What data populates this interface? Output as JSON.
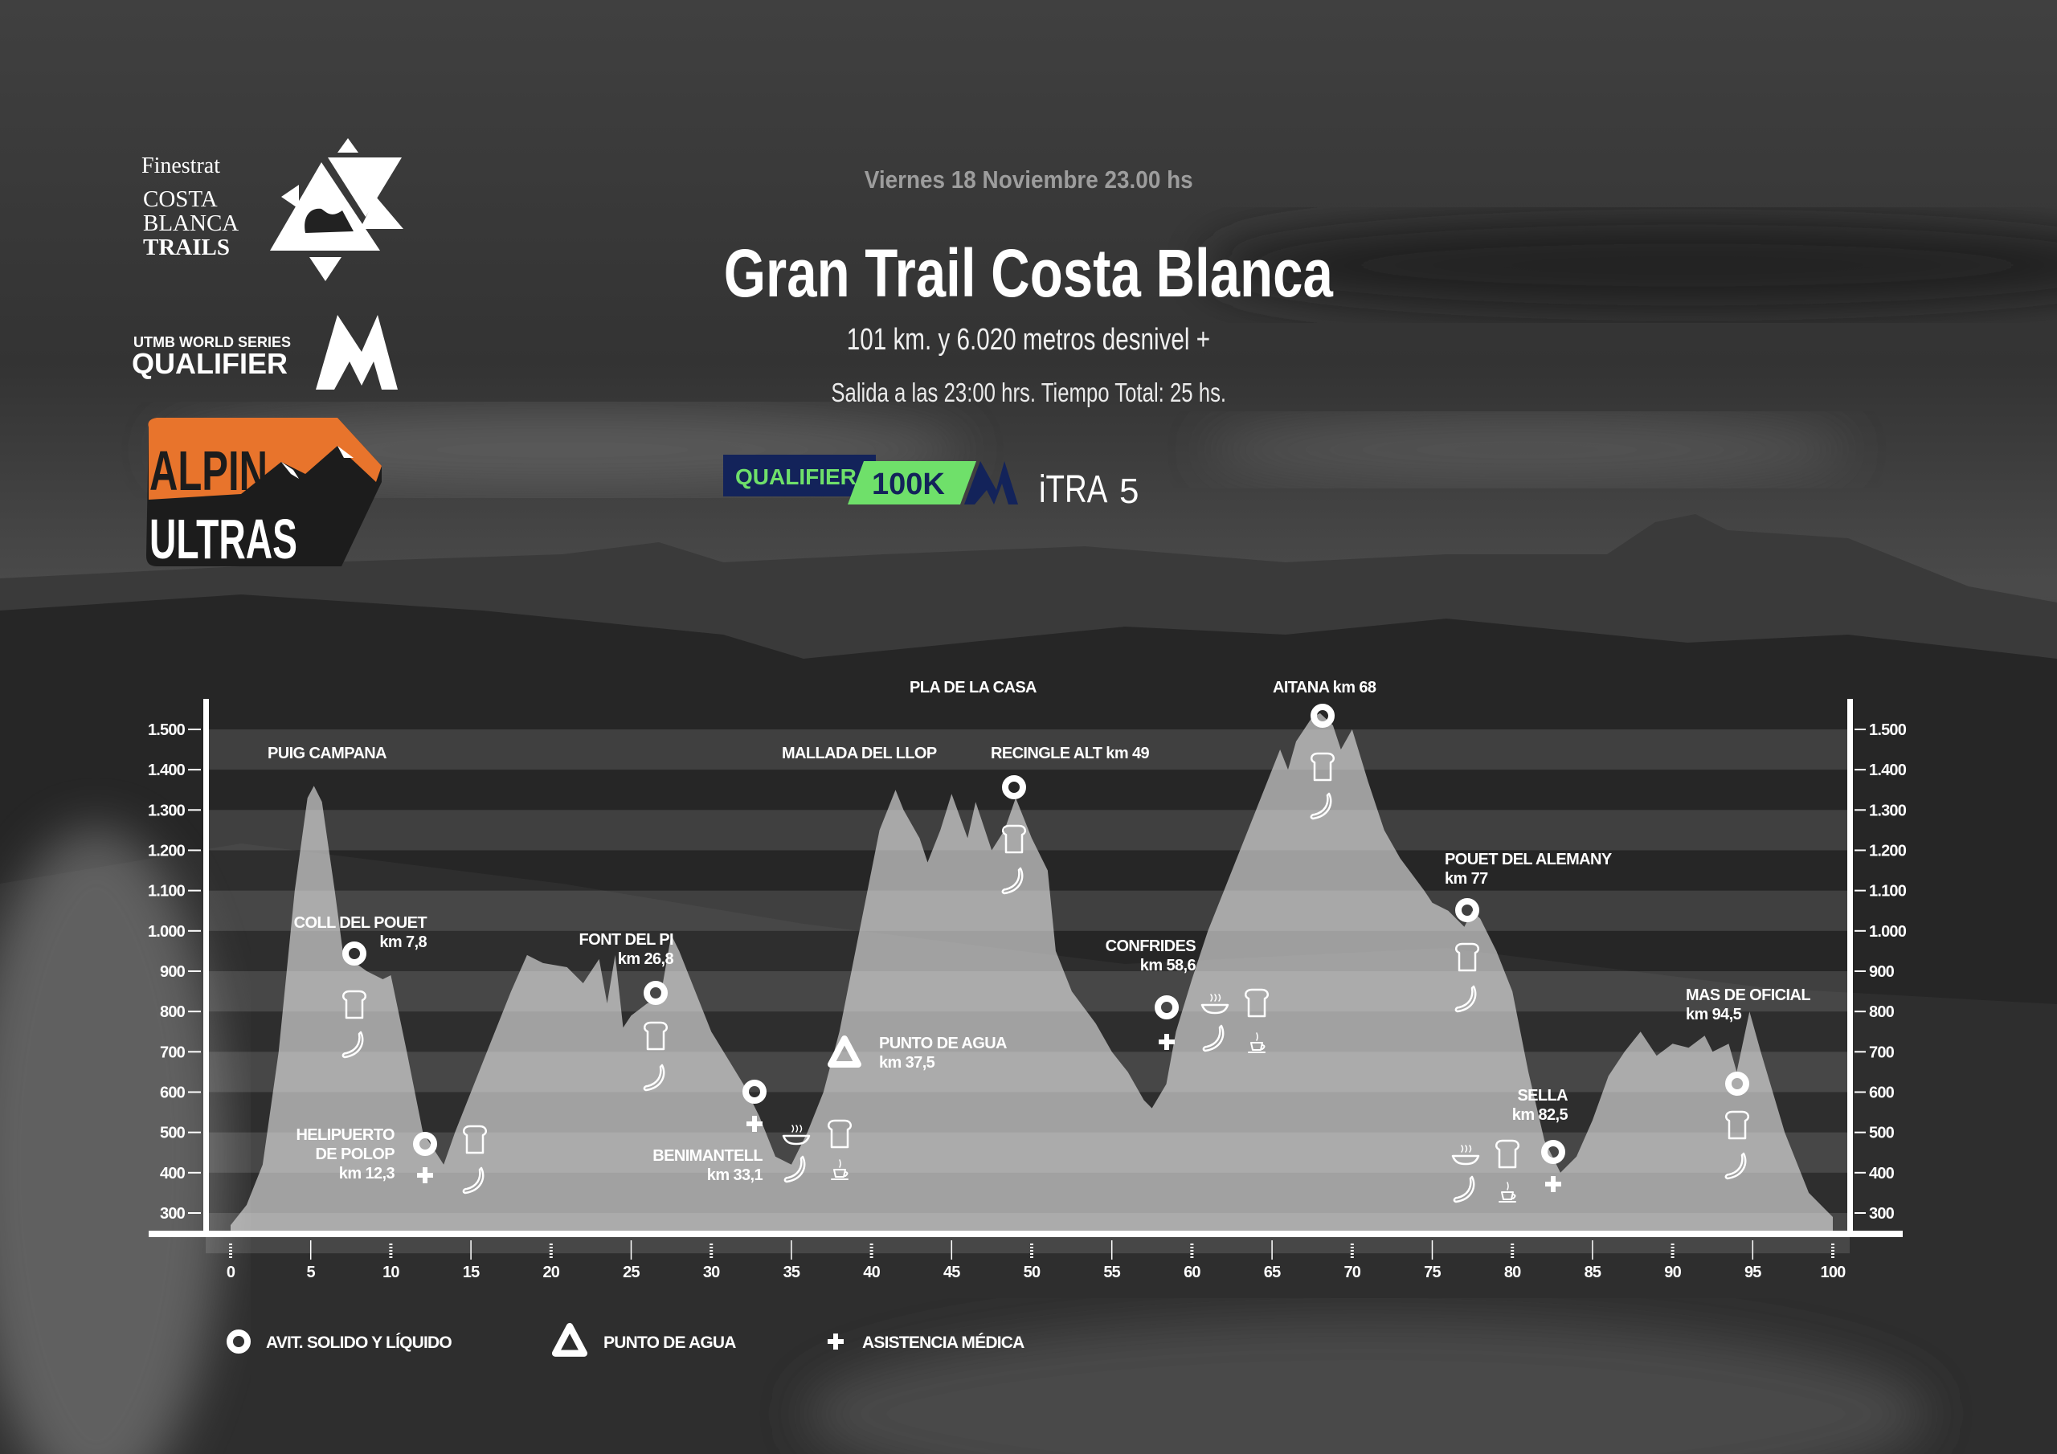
{
  "header": {
    "date": "Viernes 18 Noviembre 23.00 hs",
    "title": "Gran Trail Costa Blanca",
    "distance": "101 km. y 6.020 metros desnivel +",
    "schedule": "Salida a las 23:00 hrs. Tiempo Total: 25 hs."
  },
  "logos": {
    "costa_blanca_trails": [
      "Finestrat",
      "COSTA",
      "BLANCA",
      "TRAILS"
    ],
    "utmb": [
      "UTMB WORLD SERIES",
      "QUALIFIER"
    ],
    "alpin_ultras": [
      "ALPIN",
      "ULTRAS"
    ],
    "alpin_color": "#e8742c"
  },
  "badges": {
    "qualifier": "QUALIFIER",
    "distance": "100K",
    "itra": "iTRA",
    "itra_points": "5",
    "navy": "#13235a",
    "green": "#6fe06a"
  },
  "chart_data": {
    "type": "area",
    "title": "",
    "xlabel": "",
    "ylabel": "",
    "xlim": [
      0,
      100
    ],
    "ylim": [
      250,
      1575
    ],
    "grid": "alternating horizontal bands",
    "x_ticks": [
      0,
      5,
      10,
      15,
      20,
      25,
      30,
      35,
      40,
      45,
      50,
      55,
      60,
      65,
      70,
      75,
      80,
      85,
      90,
      95,
      100
    ],
    "x_tick_labels": [
      "0",
      "5",
      "10",
      "15",
      "20",
      "25",
      "30",
      "35",
      "40",
      "45",
      "50",
      "55",
      "60",
      "65",
      "70",
      "75",
      "80",
      "85",
      "90",
      "95",
      "100"
    ],
    "y_ticks": [
      300,
      400,
      500,
      600,
      700,
      800,
      900,
      1000,
      1100,
      1200,
      1300,
      1400,
      1500
    ],
    "y_tick_labels": [
      "300",
      "400",
      "500",
      "600",
      "700",
      "800",
      "900",
      "1.000",
      "1.100",
      "1.200",
      "1.300",
      "1.400",
      "1.500"
    ],
    "profile": [
      [
        0,
        270
      ],
      [
        1,
        320
      ],
      [
        2,
        420
      ],
      [
        3,
        700
      ],
      [
        4,
        1100
      ],
      [
        4.8,
        1330
      ],
      [
        5.2,
        1360
      ],
      [
        5.7,
        1320
      ],
      [
        6.5,
        1100
      ],
      [
        7,
        950
      ],
      [
        7.8,
        920
      ],
      [
        8.5,
        900
      ],
      [
        9.5,
        880
      ],
      [
        10,
        890
      ],
      [
        11,
        700
      ],
      [
        12,
        500
      ],
      [
        13.3,
        420
      ],
      [
        14,
        500
      ],
      [
        16,
        700
      ],
      [
        17.5,
        850
      ],
      [
        18.5,
        940
      ],
      [
        19.5,
        920
      ],
      [
        21,
        910
      ],
      [
        22,
        870
      ],
      [
        23,
        930
      ],
      [
        23.5,
        820
      ],
      [
        24,
        940
      ],
      [
        24.5,
        760
      ],
      [
        25,
        790
      ],
      [
        26,
        820
      ],
      [
        26.8,
        830
      ],
      [
        27.5,
        990
      ],
      [
        28,
        950
      ],
      [
        30,
        750
      ],
      [
        32,
        620
      ],
      [
        33,
        540
      ],
      [
        34,
        440
      ],
      [
        35,
        420
      ],
      [
        36,
        500
      ],
      [
        37,
        600
      ],
      [
        38,
        750
      ],
      [
        39.5,
        1050
      ],
      [
        40.5,
        1250
      ],
      [
        41.5,
        1350
      ],
      [
        42,
        1300
      ],
      [
        43,
        1230
      ],
      [
        43.5,
        1170
      ],
      [
        44.3,
        1250
      ],
      [
        45,
        1340
      ],
      [
        46,
        1230
      ],
      [
        46.5,
        1320
      ],
      [
        47.5,
        1200
      ],
      [
        48.3,
        1250
      ],
      [
        49,
        1330
      ],
      [
        50,
        1230
      ],
      [
        51,
        1150
      ],
      [
        51.5,
        950
      ],
      [
        52.5,
        850
      ],
      [
        54,
        770
      ],
      [
        55,
        700
      ],
      [
        56,
        650
      ],
      [
        57,
        580
      ],
      [
        57.5,
        560
      ],
      [
        58.4,
        620
      ],
      [
        59,
        750
      ],
      [
        60,
        880
      ],
      [
        61,
        1000
      ],
      [
        62,
        1100
      ],
      [
        63,
        1200
      ],
      [
        64,
        1300
      ],
      [
        65,
        1400
      ],
      [
        65.5,
        1450
      ],
      [
        66,
        1400
      ],
      [
        66.5,
        1470
      ],
      [
        67.5,
        1530
      ],
      [
        68,
        1540
      ],
      [
        68.8,
        1510
      ],
      [
        69.3,
        1450
      ],
      [
        70,
        1500
      ],
      [
        71,
        1370
      ],
      [
        72,
        1250
      ],
      [
        73,
        1180
      ],
      [
        74.5,
        1100
      ],
      [
        75,
        1070
      ],
      [
        76,
        1050
      ],
      [
        77,
        1010
      ],
      [
        77.5,
        1050
      ],
      [
        78,
        1030
      ],
      [
        79,
        950
      ],
      [
        80,
        850
      ],
      [
        81,
        650
      ],
      [
        82,
        480
      ],
      [
        83,
        400
      ],
      [
        84,
        440
      ],
      [
        85,
        530
      ],
      [
        86,
        640
      ],
      [
        87,
        700
      ],
      [
        88,
        750
      ],
      [
        89,
        690
      ],
      [
        90,
        720
      ],
      [
        91,
        710
      ],
      [
        92,
        740
      ],
      [
        92.5,
        700
      ],
      [
        93.5,
        720
      ],
      [
        94,
        650
      ],
      [
        94.8,
        800
      ],
      [
        95.5,
        700
      ],
      [
        97,
        500
      ],
      [
        98.5,
        350
      ],
      [
        100,
        290
      ]
    ],
    "summits": [
      {
        "label": "PUIG CAMPANA"
      },
      {
        "label": "MALLADA DEL LLOP"
      },
      {
        "label": "PLA DE LA CASA"
      }
    ],
    "stations": [
      {
        "lines": [
          "COLL DEL POUET",
          "km 7,8"
        ],
        "km": 7.8,
        "icons": [
          "ring",
          "bread",
          "banana"
        ]
      },
      {
        "lines": [
          "HELIPUERTO",
          "DE POLOP",
          "km 12,3"
        ],
        "km": 12.3,
        "icons": [
          "ring",
          "plus",
          "bread",
          "banana"
        ]
      },
      {
        "lines": [
          "FONT DEL PI",
          "km 26,8"
        ],
        "km": 26.8,
        "icons": [
          "ring",
          "bread",
          "banana"
        ]
      },
      {
        "lines": [
          "BENIMANTELL",
          "km 33,1"
        ],
        "km": 33.1,
        "icons": [
          "ring",
          "plus",
          "soup",
          "bread",
          "banana",
          "coffee"
        ]
      },
      {
        "lines": [
          "PUNTO DE AGUA",
          "km 37,5"
        ],
        "km": 37.5,
        "icons": [
          "triangle"
        ]
      },
      {
        "lines": [
          "RECINGLE ALT km 49"
        ],
        "km": 49,
        "icons": [
          "ring",
          "bread",
          "banana"
        ]
      },
      {
        "lines": [
          "CONFRIDES",
          "km 58,6"
        ],
        "km": 58.6,
        "icons": [
          "ring",
          "plus",
          "soup",
          "bread",
          "banana",
          "coffee"
        ]
      },
      {
        "lines": [
          "AITANA km 68"
        ],
        "km": 68,
        "icons": [
          "ring",
          "bread",
          "banana"
        ]
      },
      {
        "lines": [
          "POUET DEL ALEMANY",
          "km 77"
        ],
        "km": 77,
        "icons": [
          "ring",
          "bread",
          "banana"
        ]
      },
      {
        "lines": [
          "SELLA",
          "km 82,5"
        ],
        "km": 82.5,
        "icons": [
          "ring",
          "plus",
          "soup",
          "bread",
          "banana",
          "coffee"
        ]
      },
      {
        "lines": [
          "MAS DE OFICIAL",
          "km 94,5"
        ],
        "km": 94.5,
        "icons": [
          "ring",
          "bread",
          "banana"
        ]
      }
    ],
    "legend": [
      {
        "icon": "ring",
        "label": "AVIT. SOLIDO Y LÍQUIDO"
      },
      {
        "icon": "triangle",
        "label": "PUNTO DE AGUA"
      },
      {
        "icon": "plus",
        "label": "ASISTENCIA MÉDICA"
      }
    ]
  }
}
